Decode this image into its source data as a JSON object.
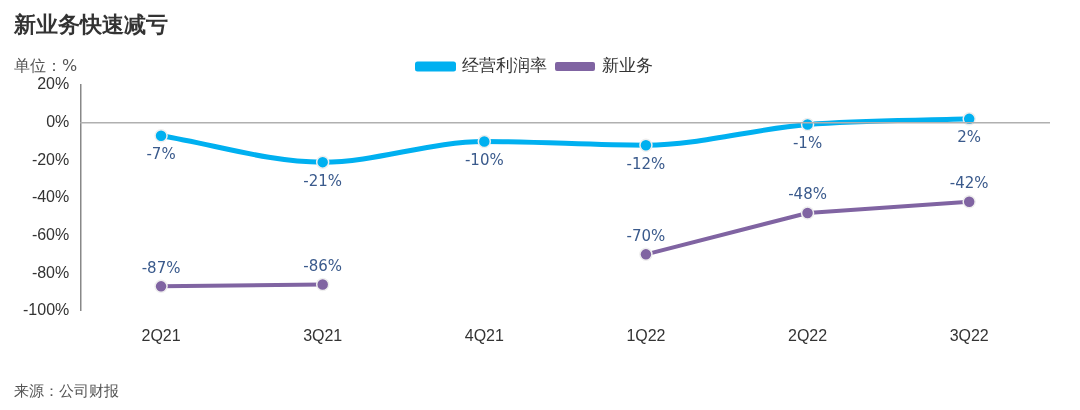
{
  "chart_data": {
    "type": "line",
    "title": "新业务快速减亏",
    "ylabel": "单位：%",
    "categories": [
      "2Q21",
      "3Q21",
      "4Q21",
      "1Q22",
      "2Q22",
      "3Q22"
    ],
    "series": [
      {
        "name": "经营利润率",
        "color": "#00b0f0",
        "values": [
          -7,
          -21,
          -10,
          -12,
          -1,
          2
        ],
        "value_labels": [
          "-7%",
          "-21%",
          "-10%",
          "-12%",
          "-1%",
          "2%"
        ]
      },
      {
        "name": "新业务",
        "color": "#8064a2",
        "values": [
          -87,
          -86,
          null,
          -70,
          -48,
          -42
        ],
        "value_labels": [
          "-87%",
          "-86%",
          null,
          "-70%",
          "-48%",
          "-42%"
        ]
      }
    ],
    "ylim": [
      -100,
      20
    ],
    "yticks": [
      {
        "value": 20,
        "label": "20%"
      },
      {
        "value": 0,
        "label": "0%"
      },
      {
        "value": -20,
        "label": "-20%"
      },
      {
        "value": -40,
        "label": "-40%"
      },
      {
        "value": -60,
        "label": "-60%"
      },
      {
        "value": -80,
        "label": "-80%"
      },
      {
        "value": -100,
        "label": "-100%"
      }
    ],
    "ref_lines": [
      {
        "axis": "y",
        "value": 0,
        "color": "#b0b0b0"
      }
    ],
    "grid": false,
    "legend": "top",
    "marker": "circle",
    "line_style": "solid",
    "annotations": [
      "来源：公司财报"
    ]
  }
}
